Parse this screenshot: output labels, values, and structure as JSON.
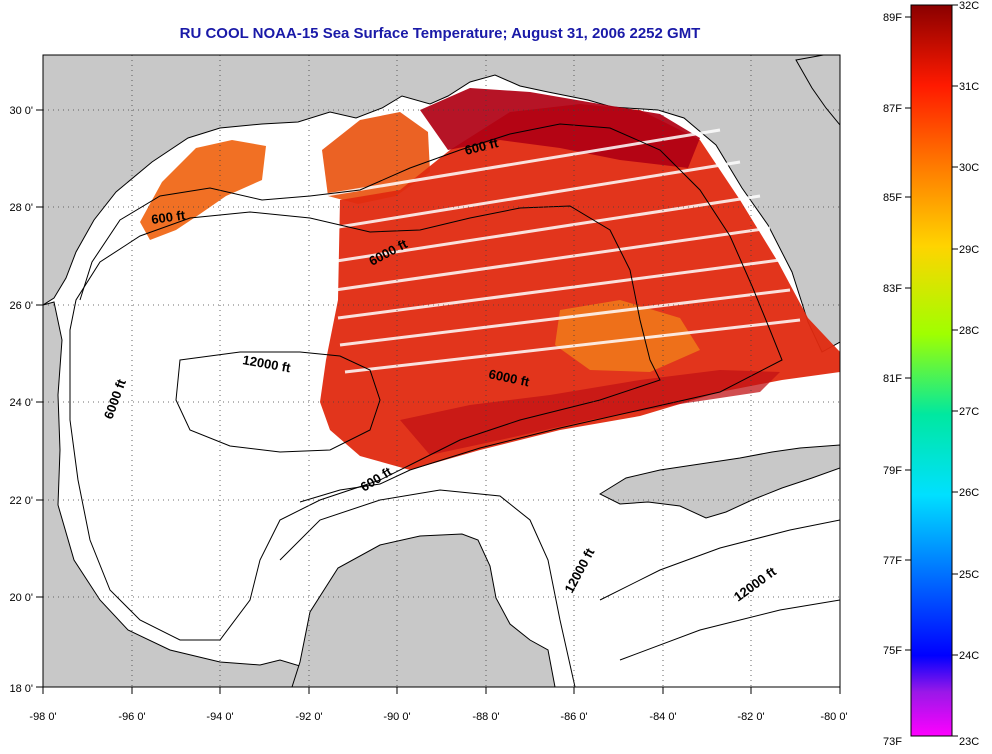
{
  "title": "RU COOL  NOAA-15  Sea Surface Temperature;  August 31, 2006 2252 GMT",
  "map": {
    "lon_ticks": [
      "-98 0'",
      "-96 0'",
      "-94 0'",
      "-92 0'",
      "-90 0'",
      "-88 0'",
      "-86 0'",
      "-84 0'",
      "-82 0'",
      "-80 0'"
    ],
    "lat_ticks": [
      "18 0'",
      "20 0'",
      "22 0'",
      "24 0'",
      "26 0'",
      "28 0'",
      "30 0'"
    ],
    "lon_range": [
      -98,
      -80
    ],
    "lat_range": [
      18,
      31
    ],
    "grid": "dotted",
    "contour_labels": [
      "600 ft",
      "600 ft",
      "6000 ft",
      "12000 ft",
      "6000 ft",
      "6000 ft",
      "600 ft",
      "12000 ft",
      "12000 ft"
    ]
  },
  "colorbar": {
    "f_labels": [
      "89F",
      "87F",
      "85F",
      "83F",
      "81F",
      "79F",
      "77F",
      "75F",
      "73F"
    ],
    "c_labels": [
      "32C",
      "31C",
      "30C",
      "29C",
      "28C",
      "27C",
      "26C",
      "25C",
      "24C",
      "23C"
    ],
    "range_c": [
      23,
      32
    ]
  },
  "colors": {
    "title": "#1a1aa8",
    "land": "#c8c8c8",
    "sea": "#ffffff",
    "sst_warm": "#e23a10",
    "sst_hot": "#b00014"
  }
}
